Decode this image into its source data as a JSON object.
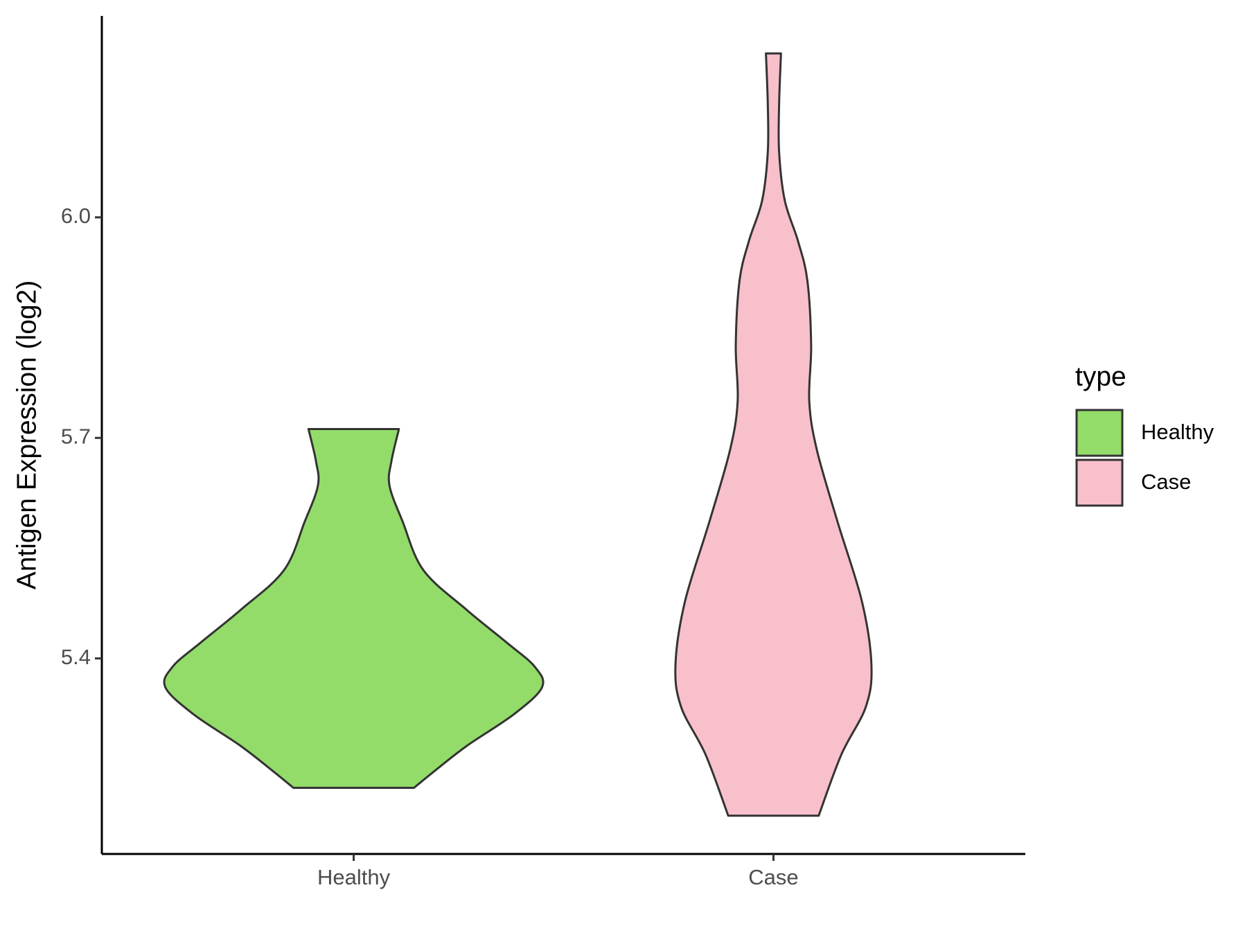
{
  "chart_data": {
    "type": "violin",
    "y_label": "Antigen Expression (log2)",
    "legend_title": "type",
    "categories": [
      "Healthy",
      "Case"
    ],
    "ylim": [
      5.134,
      6.274
    ],
    "yticks": [
      {
        "value": 5.4,
        "label": "5.4"
      },
      {
        "value": 5.7,
        "label": "5.7"
      },
      {
        "value": 6.0,
        "label": "6.0"
      }
    ],
    "legend_position": "right",
    "series": [
      {
        "name": "Healthy",
        "color": "#93dc6a",
        "y": [
          5.712,
          5.668,
          5.635,
          5.586,
          5.52,
          5.466,
          5.422,
          5.389,
          5.361,
          5.324,
          5.281,
          5.247,
          5.224
        ],
        "density": [
          0.24,
          0.2,
          0.19,
          0.26,
          0.37,
          0.6,
          0.81,
          0.96,
          1.0,
          0.85,
          0.6,
          0.43,
          0.32
        ]
      },
      {
        "name": "Case",
        "color": "#f8c0cb",
        "y": [
          6.223,
          6.154,
          6.089,
          6.023,
          5.968,
          5.914,
          5.826,
          5.75,
          5.684,
          5.586,
          5.477,
          5.391,
          5.334,
          5.269,
          5.186
        ],
        "density": [
          0.04,
          0.03,
          0.03,
          0.06,
          0.13,
          0.18,
          0.2,
          0.19,
          0.23,
          0.34,
          0.47,
          0.52,
          0.49,
          0.36,
          0.24
        ]
      }
    ]
  }
}
